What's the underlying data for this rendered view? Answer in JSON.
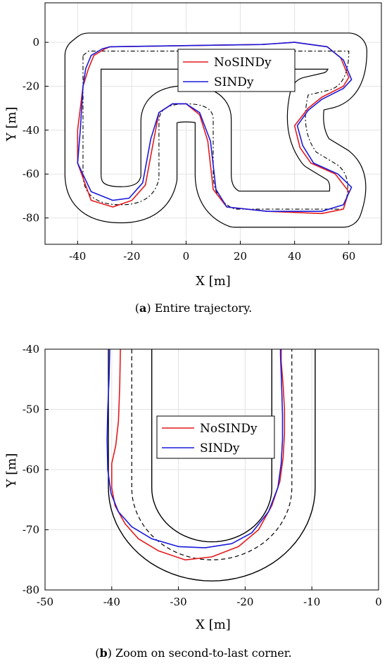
{
  "chart_data": [
    {
      "type": "line",
      "xlabel": "X [m]",
      "ylabel": "Y [m]",
      "xlim": [
        -52,
        72
      ],
      "ylim": [
        -92,
        18
      ],
      "xticks": [
        -40,
        -20,
        0,
        20,
        40,
        60
      ],
      "yticks": [
        0,
        -20,
        -40,
        -60,
        -80
      ],
      "xtick_labels": [
        "-40",
        "-20",
        "0",
        "20",
        "40",
        "60"
      ],
      "ytick_labels": [
        "0",
        "-20",
        "-40",
        "-60",
        "-80"
      ],
      "grid": true,
      "legend_position": "top-center",
      "caption_tag": "a",
      "caption_text": "Entire trajectory.",
      "series": [
        {
          "name": "NoSINDy",
          "color": "#e41a1c",
          "x": [
            -36,
            -34,
            -30,
            -28,
            28,
            40,
            52,
            57,
            60,
            58,
            50,
            45,
            40,
            42,
            46,
            55,
            60,
            58,
            50,
            30,
            15,
            10,
            8,
            5,
            0,
            -5,
            -10,
            -12,
            -15,
            -20,
            -27,
            -35,
            -40,
            -40,
            -38,
            -36
          ],
          "y": [
            -12,
            -6,
            -3,
            -2,
            -1,
            0,
            -2,
            -7,
            -16,
            -20,
            -25,
            -30,
            -38,
            -48,
            -55,
            -60,
            -68,
            -76,
            -78,
            -77,
            -75,
            -67,
            -45,
            -33,
            -28,
            -28,
            -32,
            -45,
            -65,
            -72,
            -75,
            -72,
            -55,
            -40,
            -20,
            -12
          ]
        },
        {
          "name": "SINDy",
          "color": "#1a1adb",
          "x": [
            -37,
            -35,
            -31,
            -28,
            28,
            40,
            52,
            58,
            61,
            58,
            50,
            45,
            41,
            43,
            47,
            56,
            61,
            58,
            50,
            30,
            15,
            11,
            9,
            5,
            0,
            -5,
            -10,
            -13,
            -16,
            -21,
            -27,
            -35,
            -40,
            -39,
            -38,
            -37
          ],
          "y": [
            -12,
            -6,
            -3,
            -2,
            -1,
            0,
            -2,
            -8,
            -17,
            -21,
            -26,
            -31,
            -38,
            -47,
            -55,
            -60,
            -66,
            -74,
            -77,
            -77,
            -75,
            -67,
            -45,
            -32,
            -28,
            -28,
            -32,
            -44,
            -64,
            -71,
            -72,
            -68,
            -55,
            -40,
            -20,
            -12
          ]
        }
      ]
    },
    {
      "type": "line",
      "xlabel": "X [m]",
      "ylabel": "Y [m]",
      "xlim": [
        -50,
        0
      ],
      "ylim": [
        -80,
        -40
      ],
      "xticks": [
        -50,
        -40,
        -30,
        -20,
        -10,
        0
      ],
      "yticks": [
        -40,
        -50,
        -60,
        -70,
        -80
      ],
      "xtick_labels": [
        "-50",
        "-40",
        "-30",
        "-20",
        "-10",
        "0"
      ],
      "ytick_labels": [
        "-40",
        "-50",
        "-60",
        "-70",
        "-80"
      ],
      "grid": true,
      "legend_position": "center",
      "caption_tag": "b",
      "caption_text": "Zoom on second-to-last corner.",
      "series": [
        {
          "name": "NoSINDy",
          "color": "#e41a1c",
          "x": [
            -38.7,
            -38.8,
            -39.0,
            -39.4,
            -40.0,
            -40.0,
            -39.5,
            -38.0,
            -36.0,
            -33.0,
            -29.0,
            -25.0,
            -21.0,
            -18.0,
            -16.0,
            -14.8,
            -14.3,
            -14.1,
            -14.1,
            -14.3,
            -14.6,
            -14.6
          ],
          "y": [
            -40,
            -46,
            -52,
            -56,
            -59,
            -63,
            -66,
            -69,
            -71.5,
            -73.5,
            -75,
            -74.5,
            -72.8,
            -70,
            -66,
            -62,
            -58,
            -54,
            -50,
            -46,
            -42,
            -40
          ]
        },
        {
          "name": "SINDy",
          "color": "#1a1adb",
          "x": [
            -40.3,
            -40.4,
            -40.6,
            -40.7,
            -40.6,
            -40.1,
            -39.0,
            -37.0,
            -34.0,
            -30.0,
            -26.0,
            -22.0,
            -19.0,
            -16.5,
            -15.1,
            -14.6,
            -14.4,
            -14.4,
            -14.5,
            -14.6,
            -14.7,
            -14.7
          ],
          "y": [
            -40,
            -45,
            -50,
            -55,
            -60,
            -64,
            -67,
            -69.5,
            -71.5,
            -72.8,
            -73,
            -72.3,
            -70.5,
            -67,
            -63,
            -59,
            -55,
            -51,
            -47,
            -44,
            -41,
            -40
          ]
        }
      ]
    }
  ]
}
